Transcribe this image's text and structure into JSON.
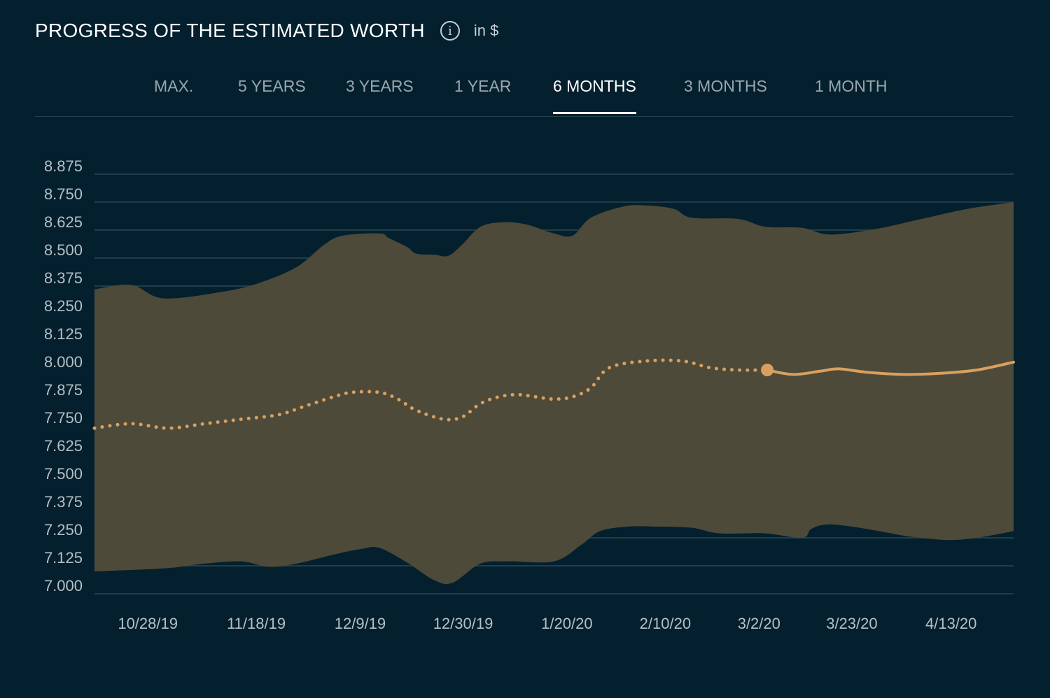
{
  "header": {
    "title": "PROGRESS OF THE ESTIMATED WORTH",
    "info_icon": "info-icon",
    "unit": "in $"
  },
  "tabs": [
    {
      "label": "MAX.",
      "active": false
    },
    {
      "label": "5 YEARS",
      "active": false
    },
    {
      "label": "3 YEARS",
      "active": false
    },
    {
      "label": "1 YEAR",
      "active": false
    },
    {
      "label": "6 MONTHS",
      "active": true
    },
    {
      "label": "3 MONTHS",
      "active": false
    },
    {
      "label": "1 MONTH",
      "active": false
    }
  ],
  "colors": {
    "background": "#04202e",
    "band": "#4d4a3a",
    "line": "#d8a060",
    "grid": "#2c4654"
  },
  "chart_data": {
    "type": "area",
    "ylim": [
      7.0,
      8.875
    ],
    "yticks": [
      "8.875",
      "8.750",
      "8.625",
      "8.500",
      "8.375",
      "8.250",
      "8.125",
      "8.000",
      "7.875",
      "7.750",
      "7.625",
      "7.500",
      "7.375",
      "7.250",
      "7.125",
      "7.000"
    ],
    "xticks": [
      {
        "label": "10/28/19",
        "t": 0.058
      },
      {
        "label": "11/18/19",
        "t": 0.176
      },
      {
        "label": "12/9/19",
        "t": 0.289
      },
      {
        "label": "12/30/19",
        "t": 0.401
      },
      {
        "label": "1/20/20",
        "t": 0.514
      },
      {
        "label": "2/10/20",
        "t": 0.621
      },
      {
        "label": "3/2/20",
        "t": 0.723
      },
      {
        "label": "3/23/20",
        "t": 0.824
      },
      {
        "label": "4/13/20",
        "t": 0.932
      }
    ],
    "grid": true,
    "series": [
      {
        "role": "upper_band",
        "points": [
          [
            0.0,
            8.36
          ],
          [
            0.04,
            8.38
          ],
          [
            0.075,
            8.32
          ],
          [
            0.14,
            8.35
          ],
          [
            0.18,
            8.39
          ],
          [
            0.22,
            8.46
          ],
          [
            0.25,
            8.56
          ],
          [
            0.27,
            8.6
          ],
          [
            0.31,
            8.61
          ],
          [
            0.32,
            8.59
          ],
          [
            0.34,
            8.55
          ],
          [
            0.35,
            8.52
          ],
          [
            0.37,
            8.515
          ],
          [
            0.385,
            8.51
          ],
          [
            0.4,
            8.56
          ],
          [
            0.42,
            8.64
          ],
          [
            0.445,
            8.66
          ],
          [
            0.47,
            8.65
          ],
          [
            0.5,
            8.61
          ],
          [
            0.52,
            8.6
          ],
          [
            0.54,
            8.68
          ],
          [
            0.575,
            8.73
          ],
          [
            0.6,
            8.735
          ],
          [
            0.63,
            8.72
          ],
          [
            0.65,
            8.68
          ],
          [
            0.7,
            8.675
          ],
          [
            0.73,
            8.64
          ],
          [
            0.77,
            8.635
          ],
          [
            0.8,
            8.605
          ],
          [
            0.85,
            8.63
          ],
          [
            0.9,
            8.675
          ],
          [
            0.95,
            8.72
          ],
          [
            1.0,
            8.75
          ]
        ]
      },
      {
        "role": "lower_band",
        "points": [
          [
            0.0,
            7.1
          ],
          [
            0.08,
            7.115
          ],
          [
            0.12,
            7.135
          ],
          [
            0.16,
            7.145
          ],
          [
            0.19,
            7.12
          ],
          [
            0.22,
            7.135
          ],
          [
            0.26,
            7.175
          ],
          [
            0.29,
            7.2
          ],
          [
            0.31,
            7.205
          ],
          [
            0.34,
            7.14
          ],
          [
            0.37,
            7.06
          ],
          [
            0.39,
            7.05
          ],
          [
            0.42,
            7.135
          ],
          [
            0.45,
            7.145
          ],
          [
            0.5,
            7.145
          ],
          [
            0.53,
            7.22
          ],
          [
            0.55,
            7.28
          ],
          [
            0.58,
            7.3
          ],
          [
            0.61,
            7.3
          ],
          [
            0.65,
            7.295
          ],
          [
            0.68,
            7.27
          ],
          [
            0.73,
            7.27
          ],
          [
            0.77,
            7.25
          ],
          [
            0.78,
            7.29
          ],
          [
            0.8,
            7.31
          ],
          [
            0.84,
            7.29
          ],
          [
            0.88,
            7.26
          ],
          [
            0.9,
            7.25
          ],
          [
            0.93,
            7.24
          ],
          [
            0.96,
            7.25
          ],
          [
            1.0,
            7.28
          ]
        ]
      },
      {
        "role": "history_dotted",
        "points": [
          [
            0.0,
            7.74
          ],
          [
            0.04,
            7.76
          ],
          [
            0.08,
            7.74
          ],
          [
            0.12,
            7.76
          ],
          [
            0.16,
            7.78
          ],
          [
            0.2,
            7.8
          ],
          [
            0.23,
            7.84
          ],
          [
            0.26,
            7.88
          ],
          [
            0.28,
            7.9
          ],
          [
            0.31,
            7.9
          ],
          [
            0.33,
            7.87
          ],
          [
            0.35,
            7.82
          ],
          [
            0.38,
            7.78
          ],
          [
            0.4,
            7.79
          ],
          [
            0.42,
            7.85
          ],
          [
            0.44,
            7.88
          ],
          [
            0.46,
            7.89
          ],
          [
            0.48,
            7.88
          ],
          [
            0.5,
            7.87
          ],
          [
            0.52,
            7.88
          ],
          [
            0.54,
            7.92
          ],
          [
            0.56,
            8.01
          ],
          [
            0.6,
            8.04
          ],
          [
            0.64,
            8.04
          ],
          [
            0.67,
            8.01
          ],
          [
            0.7,
            8.0
          ],
          [
            0.732,
            8.0
          ]
        ]
      },
      {
        "role": "recent_solid",
        "points": [
          [
            0.732,
            8.0
          ],
          [
            0.76,
            7.98
          ],
          [
            0.79,
            7.995
          ],
          [
            0.81,
            8.005
          ],
          [
            0.84,
            7.99
          ],
          [
            0.88,
            7.98
          ],
          [
            0.92,
            7.985
          ],
          [
            0.96,
            8.0
          ],
          [
            1.0,
            8.035
          ]
        ]
      }
    ],
    "marker": {
      "t": 0.732,
      "value": 8.0
    }
  }
}
